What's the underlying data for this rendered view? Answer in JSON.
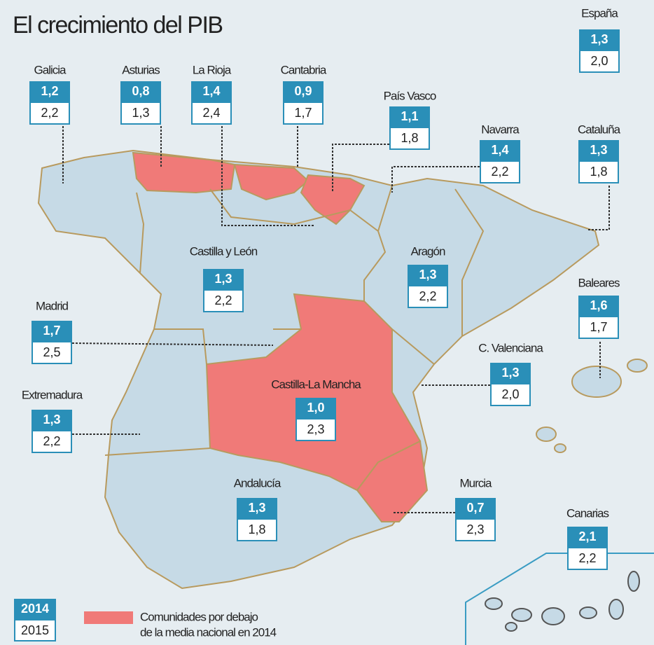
{
  "title": "El crecimiento del PIB",
  "regions": [
    {
      "name": "España",
      "v2014": "1,3",
      "v2015": "2,0"
    },
    {
      "name": "Galicia",
      "v2014": "1,2",
      "v2015": "2,2"
    },
    {
      "name": "Asturias",
      "v2014": "0,8",
      "v2015": "1,3"
    },
    {
      "name": "La Rioja",
      "v2014": "1,4",
      "v2015": "2,4"
    },
    {
      "name": "Cantabria",
      "v2014": "0,9",
      "v2015": "1,7"
    },
    {
      "name": "País Vasco",
      "v2014": "1,1",
      "v2015": "1,8"
    },
    {
      "name": "Navarra",
      "v2014": "1,4",
      "v2015": "2,2"
    },
    {
      "name": "Cataluña",
      "v2014": "1,3",
      "v2015": "1,8"
    },
    {
      "name": "Castilla y León",
      "v2014": "1,3",
      "v2015": "2,2"
    },
    {
      "name": "Aragón",
      "v2014": "1,3",
      "v2015": "2,2"
    },
    {
      "name": "Madrid",
      "v2014": "1,7",
      "v2015": "2,5"
    },
    {
      "name": "Baleares",
      "v2014": "1,6",
      "v2015": "1,7"
    },
    {
      "name": "C. Valenciana",
      "v2014": "1,3",
      "v2015": "2,0"
    },
    {
      "name": "Extremadura",
      "v2014": "1,3",
      "v2015": "2,2"
    },
    {
      "name": "Castilla-La Mancha",
      "v2014": "1,0",
      "v2015": "2,3"
    },
    {
      "name": "Andalucía",
      "v2014": "1,3",
      "v2015": "1,8"
    },
    {
      "name": "Murcia",
      "v2014": "0,7",
      "v2015": "2,3"
    },
    {
      "name": "Canarias",
      "v2014": "2,1",
      "v2015": "2,2"
    }
  ],
  "legend": {
    "year_top": "2014",
    "year_bottom": "2015",
    "label": [
      "Comunidades por debajo",
      "de la media nacional en 2014"
    ]
  }
}
